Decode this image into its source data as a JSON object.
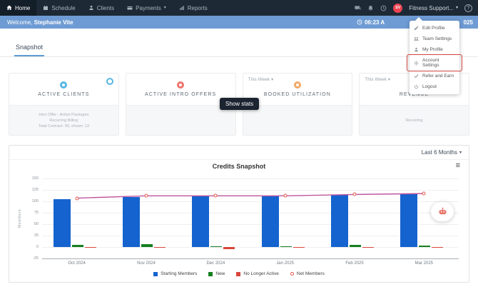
{
  "topnav": {
    "items": [
      {
        "label": "Home",
        "icon": "home",
        "active": true
      },
      {
        "label": "Schedule",
        "icon": "schedule"
      },
      {
        "label": "Clients",
        "icon": "clients"
      },
      {
        "label": "Payments",
        "icon": "payments",
        "caret": true
      },
      {
        "label": "Reports",
        "icon": "reports"
      }
    ],
    "action_icons": [
      {
        "name": "chat"
      },
      {
        "name": "bell"
      },
      {
        "name": "clock"
      }
    ],
    "user": {
      "initials": "SV",
      "name": "Fitness Support...",
      "avatar_color": "#ee4352"
    },
    "help_glyph": "?"
  },
  "welcome_bar": {
    "welcome_prefix": "Welcome, ",
    "user_name": "Stephanie Vite",
    "time_fragment": "06:23 A",
    "date_fragment": "025",
    "bar_color": "#6e9bd3"
  },
  "tabs": {
    "snapshot": "Snapshot"
  },
  "cards": [
    {
      "title": "ACTIVE CLIENTS",
      "accent": "#56b6e4",
      "has_info_icon": true,
      "footer_lines": [
        "Intro Offer - Active Packages",
        "Recurring Billing",
        "Total Contract: 99, shown: 13"
      ]
    },
    {
      "title": "ACTIVE INTRO OFFERS",
      "accent": "#f0736e",
      "footer_lines": []
    },
    {
      "title": "BOOKED UTILIZATION",
      "accent": "#f2a964",
      "period": "This Week",
      "footer_lines": []
    },
    {
      "title": "REVENUE",
      "accent": "#6fa99f",
      "period": "This Week",
      "footer_lines": [
        "Recurring"
      ]
    }
  ],
  "buttons": {
    "show_stats": "Show stats"
  },
  "chart_panel": {
    "range_selector": "Last 6 Months",
    "title": "Credits Snapshot"
  },
  "chart_data": {
    "type": "bar+line",
    "title": "Credits Snapshot",
    "categories": [
      "Oct 2024",
      "Nov 2024",
      "Dec 2024",
      "Jan 2025",
      "Feb 2025",
      "Mar 2025"
    ],
    "series": [
      {
        "name": "Starting Members",
        "type": "bar",
        "color": "#1563cf",
        "values": [
          104,
          110,
          113,
          112,
          114,
          117
        ]
      },
      {
        "name": "New",
        "type": "bar",
        "color": "#157f1f",
        "values": [
          4,
          7,
          2,
          2,
          4,
          3
        ]
      },
      {
        "name": "No Longer Active",
        "type": "bar",
        "color": "#d9453c",
        "values": [
          -2,
          -2,
          -4,
          -2,
          -1,
          -2
        ]
      },
      {
        "name": "Net Members",
        "type": "line",
        "color": "#c0569f",
        "marker_color": "#e25549",
        "values": [
          107,
          112,
          112,
          112,
          115,
          117
        ]
      }
    ],
    "ylabel": "Members",
    "ylim": [
      -25,
      150
    ],
    "yticks": [
      150,
      125,
      100,
      75,
      50,
      25,
      0,
      -25
    ],
    "grid": true,
    "legend_position": "bottom"
  },
  "dropdown": {
    "items": [
      {
        "label": "Edit Profile",
        "icon": "pencil"
      },
      {
        "label": "Team Settings",
        "icon": "team"
      },
      {
        "label": "My Profile",
        "icon": "user"
      },
      {
        "label": "Account Settings",
        "icon": "gear"
      },
      {
        "label": "Refer and Earn",
        "icon": "check"
      },
      {
        "label": "Logout",
        "icon": "power"
      }
    ],
    "highlighted_index": 3,
    "highlight_color": "#cf4440"
  }
}
